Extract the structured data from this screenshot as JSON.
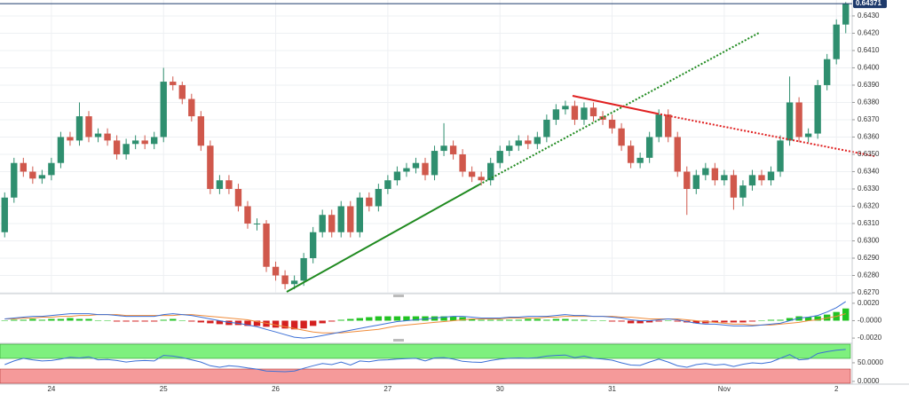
{
  "chart_data": [
    {
      "type": "candlestick",
      "categories": [
        null,
        null,
        null,
        null,
        null,
        "24",
        null,
        null,
        null,
        null,
        null,
        null,
        null,
        null,
        null,
        null,
        null,
        "25",
        null,
        null,
        null,
        null,
        null,
        null,
        null,
        null,
        null,
        null,
        null,
        "26",
        null,
        null,
        null,
        null,
        null,
        null,
        null,
        null,
        null,
        null,
        null,
        "27",
        null,
        null,
        null,
        null,
        null,
        null,
        null,
        null,
        null,
        null,
        null,
        "30",
        null,
        null,
        null,
        null,
        null,
        null,
        null,
        null,
        null,
        null,
        null,
        "31",
        null,
        null,
        null,
        null,
        null,
        null,
        null,
        null,
        null,
        null,
        null,
        "Nov",
        null,
        null,
        null,
        null,
        null,
        null,
        null,
        null,
        null,
        null,
        null,
        "2",
        null
      ],
      "open": [
        0.6305,
        0.6325,
        0.6345,
        0.634,
        0.6336,
        0.6338,
        0.6345,
        0.636,
        0.6358,
        0.6372,
        0.636,
        0.6362,
        0.6358,
        0.635,
        0.6356,
        0.6358,
        0.6356,
        0.636,
        0.6392,
        0.639,
        0.6382,
        0.6372,
        0.6355,
        0.633,
        0.6335,
        0.633,
        0.632,
        0.631,
        0.631,
        0.6285,
        0.628,
        0.6275,
        0.6277,
        0.629,
        0.6305,
        0.6315,
        0.6305,
        0.632,
        0.6305,
        0.6325,
        0.632,
        0.633,
        0.6335,
        0.634,
        0.6342,
        0.6345,
        0.6338,
        0.6352,
        0.6355,
        0.635,
        0.634,
        0.6337,
        0.6335,
        0.6345,
        0.6352,
        0.6355,
        0.6358,
        0.6356,
        0.636,
        0.637,
        0.6376,
        0.6378,
        0.637,
        0.6377,
        0.6372,
        0.637,
        0.6365,
        0.6355,
        0.6345,
        0.6348,
        0.636,
        0.6373,
        0.636,
        0.634,
        0.633,
        0.6338,
        0.6342,
        0.6335,
        0.6338,
        0.6325,
        0.6332,
        0.6338,
        0.6335,
        0.634,
        0.6358,
        0.638,
        0.636,
        0.6362,
        0.639,
        0.6405,
        0.6425
      ],
      "high": [
        0.6328,
        0.6348,
        0.6348,
        0.6343,
        0.6341,
        0.6348,
        0.6363,
        0.6363,
        0.638,
        0.6375,
        0.6365,
        0.6365,
        0.6361,
        0.6359,
        0.6361,
        0.6361,
        0.6363,
        0.64,
        0.6395,
        0.6392,
        0.6385,
        0.6375,
        0.6358,
        0.6338,
        0.6338,
        0.6333,
        0.6323,
        0.6313,
        0.6312,
        0.6288,
        0.6283,
        0.628,
        0.6293,
        0.6308,
        0.6318,
        0.6318,
        0.6323,
        0.6323,
        0.6328,
        0.6328,
        0.6333,
        0.6338,
        0.6343,
        0.6345,
        0.6348,
        0.6348,
        0.6355,
        0.6368,
        0.6358,
        0.6353,
        0.6343,
        0.634,
        0.6348,
        0.6355,
        0.6358,
        0.6361,
        0.6361,
        0.6363,
        0.6373,
        0.6379,
        0.6381,
        0.6381,
        0.638,
        0.638,
        0.6375,
        0.6373,
        0.6368,
        0.6358,
        0.6351,
        0.6363,
        0.6376,
        0.6376,
        0.6363,
        0.6343,
        0.6341,
        0.6345,
        0.6345,
        0.6341,
        0.6341,
        0.6335,
        0.6341,
        0.6341,
        0.6343,
        0.6361,
        0.6395,
        0.6383,
        0.6365,
        0.6393,
        0.6408,
        0.6428,
        0.6438
      ],
      "low": [
        0.6302,
        0.6322,
        0.6337,
        0.6333,
        0.6333,
        0.6335,
        0.6342,
        0.6355,
        0.6355,
        0.6357,
        0.6357,
        0.6355,
        0.6347,
        0.6347,
        0.6353,
        0.6353,
        0.6353,
        0.6357,
        0.6387,
        0.6379,
        0.6369,
        0.6352,
        0.6327,
        0.6327,
        0.6327,
        0.6317,
        0.6307,
        0.6306,
        0.6282,
        0.6277,
        0.6272,
        0.6272,
        0.6274,
        0.6287,
        0.6302,
        0.6302,
        0.6302,
        0.6302,
        0.6302,
        0.6317,
        0.6317,
        0.6327,
        0.6332,
        0.6337,
        0.6339,
        0.6335,
        0.6335,
        0.6349,
        0.6347,
        0.6337,
        0.6334,
        0.6332,
        0.6332,
        0.6342,
        0.6349,
        0.6352,
        0.6353,
        0.6353,
        0.6357,
        0.6367,
        0.6373,
        0.6367,
        0.6367,
        0.6369,
        0.6367,
        0.6362,
        0.6352,
        0.6342,
        0.6342,
        0.6345,
        0.6357,
        0.6357,
        0.6337,
        0.6315,
        0.6327,
        0.6335,
        0.6332,
        0.6332,
        0.6318,
        0.632,
        0.6329,
        0.6332,
        0.6332,
        0.6337,
        0.6355,
        0.6357,
        0.6357,
        0.6359,
        0.6387,
        0.6402,
        0.642
      ],
      "close": [
        0.6325,
        0.6345,
        0.634,
        0.6336,
        0.6338,
        0.6345,
        0.636,
        0.6358,
        0.6372,
        0.636,
        0.6362,
        0.6358,
        0.635,
        0.6356,
        0.6358,
        0.6356,
        0.636,
        0.6392,
        0.639,
        0.6382,
        0.6372,
        0.6355,
        0.633,
        0.6335,
        0.633,
        0.632,
        0.631,
        0.631,
        0.6285,
        0.628,
        0.6275,
        0.6277,
        0.629,
        0.6305,
        0.6315,
        0.6305,
        0.632,
        0.6305,
        0.6325,
        0.632,
        0.633,
        0.6335,
        0.634,
        0.6342,
        0.6345,
        0.6338,
        0.6352,
        0.6355,
        0.635,
        0.634,
        0.6337,
        0.6335,
        0.6345,
        0.6352,
        0.6355,
        0.6358,
        0.6356,
        0.636,
        0.637,
        0.6376,
        0.6378,
        0.637,
        0.6377,
        0.6372,
        0.637,
        0.6365,
        0.6355,
        0.6345,
        0.6348,
        0.636,
        0.6373,
        0.636,
        0.634,
        0.633,
        0.6338,
        0.6342,
        0.6335,
        0.6338,
        0.6325,
        0.6332,
        0.6338,
        0.6335,
        0.634,
        0.6358,
        0.638,
        0.636,
        0.6362,
        0.639,
        0.6405,
        0.6425,
        0.64371
      ],
      "up_color": "#2f8f6f",
      "down_color": "#d0584c",
      "ylim": [
        0.627,
        0.64392
      ],
      "yticks": [
        {
          "value": 0.627,
          "label": "0.6270"
        },
        {
          "value": 0.628,
          "label": "0.6280"
        },
        {
          "value": 0.629,
          "label": "0.6290"
        },
        {
          "value": 0.63,
          "label": "0.6300"
        },
        {
          "value": 0.631,
          "label": "0.6310"
        },
        {
          "value": 0.632,
          "label": "0.6320"
        },
        {
          "value": 0.633,
          "label": "0.6330"
        },
        {
          "value": 0.634,
          "label": "0.6340"
        },
        {
          "value": 0.635,
          "label": "0.6350"
        },
        {
          "value": 0.636,
          "label": "0.6360"
        },
        {
          "value": 0.637,
          "label": "0.6370"
        },
        {
          "value": 0.638,
          "label": "0.6380"
        },
        {
          "value": 0.639,
          "label": "0.6390"
        },
        {
          "value": 0.64,
          "label": "0.6400"
        },
        {
          "value": 0.641,
          "label": "0.6410"
        },
        {
          "value": 0.642,
          "label": "0.6420"
        },
        {
          "value": 0.643,
          "label": "0.6430"
        }
      ],
      "grid": true
    },
    {
      "type": "macd",
      "histogram": [
        0,
        0.0001,
        0.0001,
        0.0002,
        0.0001,
        0.0002,
        0.0002,
        0.0003,
        0.0002,
        0.0002,
        0,
        0,
        -0.0001,
        -0.0001,
        -0.0001,
        -0.0001,
        -0.0001,
        0.0001,
        0.0002,
        0,
        -0.0001,
        -0.0002,
        -0.0003,
        -0.0004,
        -0.0005,
        -0.0005,
        -0.0006,
        -0.0006,
        -0.0007,
        -0.0008,
        -0.0009,
        -0.001,
        -0.0009,
        -0.0006,
        -0.0003,
        -0.0001,
        0.0001,
        0.0002,
        0.0003,
        0.0004,
        0.0005,
        0.0005,
        0.0005,
        0.0005,
        0.0005,
        0.0005,
        0.0005,
        0.0005,
        0.0005,
        0.0004,
        0.0002,
        0.0001,
        0.0001,
        0.0001,
        0.0001,
        0.0001,
        0.0002,
        0.0002,
        0.0001,
        0.0002,
        0.0002,
        0.0001,
        0.0001,
        0,
        0,
        -0.0001,
        -0.0001,
        -0.0003,
        -0.0003,
        -0.0002,
        -0.0001,
        0,
        -0.0001,
        -0.0002,
        -0.0003,
        -0.0003,
        -0.0002,
        -0.0002,
        -0.0002,
        -0.0002,
        -0.0001,
        0,
        0.0001,
        0.0001,
        0.0003,
        0.0005,
        0.0004,
        0.0005,
        0.0007,
        0.001,
        0.0014
      ],
      "macd": [
        0.0002,
        0.0003,
        0.0004,
        0.0005,
        0.0005,
        0.0006,
        0.0007,
        0.0008,
        0.0008,
        0.0008,
        0.0007,
        0.0007,
        0.0006,
        0.0005,
        0.0005,
        0.0005,
        0.0005,
        0.0007,
        0.0008,
        0.0007,
        0.0006,
        0.0004,
        0.0002,
        0,
        -0.0002,
        -0.0003,
        -0.0005,
        -0.0007,
        -0.001,
        -0.0013,
        -0.0016,
        -0.0019,
        -0.002,
        -0.0019,
        -0.0017,
        -0.0015,
        -0.0013,
        -0.0011,
        -0.0009,
        -0.0007,
        -0.0005,
        -0.0003,
        -0.0001,
        0,
        0.0001,
        0.0002,
        0.0003,
        0.0004,
        0.0005,
        0.0005,
        0.0004,
        0.0003,
        0.0003,
        0.0003,
        0.0004,
        0.0004,
        0.0005,
        0.0005,
        0.0005,
        0.0006,
        0.0007,
        0.0006,
        0.0006,
        0.0005,
        0.0005,
        0.0004,
        0.0003,
        0.0001,
        0,
        0,
        0.0001,
        0.0002,
        0.0001,
        -0.0001,
        -0.0003,
        -0.0004,
        -0.0004,
        -0.0005,
        -0.0006,
        -0.0006,
        -0.0006,
        -0.0005,
        -0.0004,
        -0.0003,
        0,
        0.0003,
        0.0004,
        0.0006,
        0.001,
        0.0015,
        0.0022
      ],
      "signal": [
        0.0002,
        0.0002,
        0.0003,
        0.0003,
        0.0004,
        0.0004,
        0.0005,
        0.0005,
        0.0006,
        0.0006,
        0.0007,
        0.0007,
        0.0007,
        0.0006,
        0.0006,
        0.0006,
        0.0006,
        0.0006,
        0.0006,
        0.0007,
        0.0007,
        0.0006,
        0.0005,
        0.0004,
        0.0003,
        0.0002,
        0.0001,
        -0.0001,
        -0.0003,
        -0.0005,
        -0.0007,
        -0.0009,
        -0.0011,
        -0.0013,
        -0.0014,
        -0.0014,
        -0.0014,
        -0.0013,
        -0.0012,
        -0.0011,
        -0.001,
        -0.0008,
        -0.0006,
        -0.0005,
        -0.0004,
        -0.0003,
        -0.0002,
        -0.0001,
        0,
        0.0001,
        0.0002,
        0.0002,
        0.0002,
        0.0002,
        0.0003,
        0.0003,
        0.0003,
        0.0003,
        0.0004,
        0.0004,
        0.0005,
        0.0005,
        0.0005,
        0.0005,
        0.0005,
        0.0005,
        0.0004,
        0.0004,
        0.0003,
        0.0002,
        0.0002,
        0.0002,
        0.0002,
        0.0001,
        0,
        -0.0001,
        -0.0002,
        -0.0003,
        -0.0004,
        -0.0004,
        -0.0005,
        -0.0005,
        -0.0005,
        -0.0004,
        -0.0003,
        -0.0002,
        0,
        0.0001,
        0.0003,
        0.0005,
        0.0008
      ],
      "up_color": "#22c322",
      "down_color": "#d42020",
      "macd_color": "#3b6fd6",
      "signal_color": "#f08c3a",
      "ylim": [
        -0.0025,
        0.0028
      ],
      "yticks": [
        {
          "value": 0.002,
          "label": "0.0020"
        },
        {
          "value": 0,
          "label": "-0.0000"
        },
        {
          "value": -0.002,
          "label": "-0.0020"
        }
      ]
    },
    {
      "type": "line",
      "values": [
        45,
        55,
        62,
        58,
        55,
        56,
        60,
        65,
        63,
        66,
        58,
        59,
        56,
        52,
        55,
        56,
        55,
        70,
        68,
        64,
        58,
        52,
        42,
        38,
        42,
        40,
        36,
        33,
        28,
        27,
        26,
        28,
        35,
        42,
        48,
        45,
        52,
        44,
        55,
        53,
        57,
        58,
        60,
        61,
        62,
        55,
        63,
        64,
        60,
        54,
        52,
        51,
        56,
        60,
        62,
        63,
        62,
        64,
        68,
        70,
        71,
        64,
        68,
        62,
        60,
        57,
        50,
        44,
        43,
        52,
        60,
        52,
        42,
        38,
        45,
        48,
        44,
        46,
        40,
        46,
        50,
        48,
        52,
        62,
        72,
        58,
        60,
        75,
        80,
        84,
        86
      ],
      "color": "#3b6fd6",
      "ylim": [
        -5,
        100
      ],
      "yticks": [
        {
          "value": 50,
          "label": "50.0000"
        },
        {
          "value": 0,
          "label": "0.0000"
        }
      ]
    }
  ]
}
